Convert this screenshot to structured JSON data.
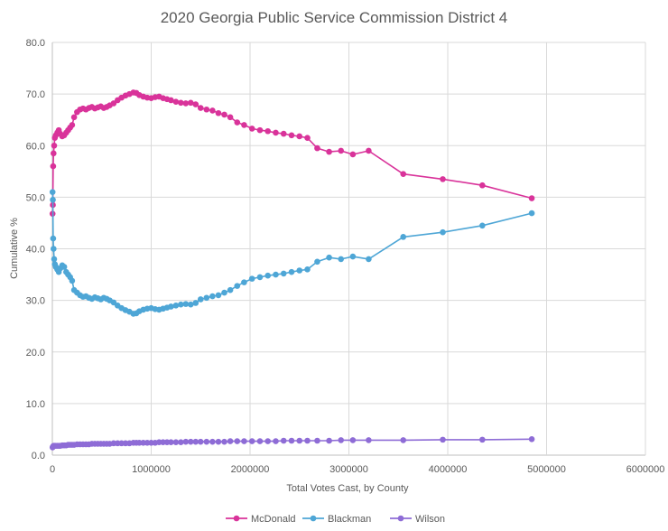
{
  "chart_data": {
    "type": "scatter",
    "title": "2020 Georgia Public Service Commission District 4",
    "xlabel": "Total Votes Cast, by County",
    "ylabel": "Cumulative %",
    "xlim": [
      0,
      6000000
    ],
    "ylim": [
      0,
      80
    ],
    "x_ticks": [
      "0",
      "1000000",
      "2000000",
      "3000000",
      "4000000",
      "5000000",
      "6000000"
    ],
    "y_ticks": [
      "0.0",
      "10.0",
      "20.0",
      "30.0",
      "40.0",
      "50.0",
      "60.0",
      "70.0",
      "80.0"
    ],
    "grid": true,
    "legend_position": "bottom",
    "series": [
      {
        "name": "McDonald",
        "color": "#d9339a",
        "x": [
          2000,
          5000,
          8000,
          12000,
          18000,
          25000,
          35000,
          50000,
          65000,
          80000,
          100000,
          120000,
          140000,
          160000,
          180000,
          200000,
          220000,
          250000,
          280000,
          310000,
          340000,
          370000,
          400000,
          430000,
          460000,
          490000,
          520000,
          550000,
          580000,
          620000,
          660000,
          700000,
          740000,
          780000,
          820000,
          850000,
          880000,
          920000,
          960000,
          1000000,
          1040000,
          1080000,
          1120000,
          1160000,
          1200000,
          1250000,
          1300000,
          1350000,
          1400000,
          1450000,
          1500000,
          1560000,
          1620000,
          1680000,
          1740000,
          1800000,
          1870000,
          1940000,
          2020000,
          2100000,
          2180000,
          2260000,
          2340000,
          2420000,
          2500000,
          2580000,
          2680000,
          2800000,
          2920000,
          3040000,
          3200000,
          3550000,
          3950000,
          4350000,
          4850000
        ],
        "y": [
          46.8,
          48.5,
          56.0,
          58.5,
          60.0,
          61.5,
          62.0,
          62.5,
          63.0,
          62.3,
          61.8,
          62.0,
          62.5,
          63.0,
          63.5,
          64.0,
          65.5,
          66.5,
          67.0,
          67.2,
          67.0,
          67.3,
          67.5,
          67.2,
          67.4,
          67.6,
          67.3,
          67.5,
          67.8,
          68.2,
          68.8,
          69.3,
          69.7,
          70.0,
          70.3,
          70.2,
          69.8,
          69.5,
          69.3,
          69.2,
          69.4,
          69.5,
          69.2,
          69.0,
          68.8,
          68.5,
          68.3,
          68.2,
          68.3,
          68.0,
          67.3,
          67.0,
          66.8,
          66.3,
          66.0,
          65.5,
          64.5,
          64.0,
          63.3,
          63.0,
          62.8,
          62.5,
          62.3,
          62.0,
          61.8,
          61.5,
          59.5,
          58.8,
          59.0,
          58.3,
          59.0,
          54.5,
          53.5,
          52.3,
          49.8
        ]
      },
      {
        "name": "Blackman",
        "color": "#4ea6d6",
        "x": [
          2000,
          5000,
          8000,
          12000,
          18000,
          25000,
          35000,
          50000,
          65000,
          80000,
          100000,
          120000,
          140000,
          160000,
          180000,
          200000,
          220000,
          250000,
          280000,
          310000,
          340000,
          370000,
          400000,
          430000,
          460000,
          490000,
          520000,
          550000,
          580000,
          620000,
          660000,
          700000,
          740000,
          780000,
          820000,
          850000,
          880000,
          920000,
          960000,
          1000000,
          1040000,
          1080000,
          1120000,
          1160000,
          1200000,
          1250000,
          1300000,
          1350000,
          1400000,
          1450000,
          1500000,
          1560000,
          1620000,
          1680000,
          1740000,
          1800000,
          1870000,
          1940000,
          2020000,
          2100000,
          2180000,
          2260000,
          2340000,
          2420000,
          2500000,
          2580000,
          2680000,
          2800000,
          2920000,
          3040000,
          3200000,
          3550000,
          3950000,
          4350000,
          4850000
        ],
        "y": [
          51.0,
          49.5,
          42.0,
          40.0,
          38.0,
          37.0,
          36.5,
          36.0,
          35.5,
          36.2,
          36.8,
          36.5,
          35.5,
          35.0,
          34.5,
          33.8,
          32.0,
          31.5,
          31.0,
          30.7,
          30.8,
          30.5,
          30.3,
          30.6,
          30.4,
          30.2,
          30.5,
          30.3,
          30.0,
          29.6,
          29.0,
          28.5,
          28.1,
          27.8,
          27.4,
          27.5,
          27.9,
          28.2,
          28.4,
          28.5,
          28.3,
          28.2,
          28.4,
          28.6,
          28.8,
          29.0,
          29.2,
          29.3,
          29.2,
          29.5,
          30.2,
          30.5,
          30.8,
          31.0,
          31.5,
          32.0,
          32.8,
          33.5,
          34.2,
          34.5,
          34.8,
          35.0,
          35.2,
          35.5,
          35.8,
          36.0,
          37.5,
          38.3,
          38.0,
          38.5,
          38.0,
          42.3,
          43.2,
          44.5,
          46.9
        ]
      },
      {
        "name": "Wilson",
        "color": "#8e6cd6",
        "x": [
          2000,
          5000,
          8000,
          12000,
          18000,
          25000,
          35000,
          50000,
          65000,
          80000,
          100000,
          120000,
          140000,
          160000,
          180000,
          200000,
          220000,
          250000,
          280000,
          310000,
          340000,
          370000,
          400000,
          430000,
          460000,
          490000,
          520000,
          550000,
          580000,
          620000,
          660000,
          700000,
          740000,
          780000,
          820000,
          850000,
          880000,
          920000,
          960000,
          1000000,
          1040000,
          1080000,
          1120000,
          1160000,
          1200000,
          1250000,
          1300000,
          1350000,
          1400000,
          1450000,
          1500000,
          1560000,
          1620000,
          1680000,
          1740000,
          1800000,
          1870000,
          1940000,
          2020000,
          2100000,
          2180000,
          2260000,
          2340000,
          2420000,
          2500000,
          2580000,
          2680000,
          2800000,
          2920000,
          3040000,
          3200000,
          3550000,
          3950000,
          4350000,
          4850000
        ],
        "y": [
          1.5,
          1.6,
          1.7,
          1.8,
          1.8,
          1.8,
          1.8,
          1.8,
          1.8,
          1.8,
          1.9,
          1.9,
          1.9,
          2.0,
          2.0,
          2.0,
          2.0,
          2.1,
          2.1,
          2.1,
          2.1,
          2.1,
          2.2,
          2.2,
          2.2,
          2.2,
          2.2,
          2.2,
          2.2,
          2.3,
          2.3,
          2.3,
          2.3,
          2.3,
          2.4,
          2.4,
          2.4,
          2.4,
          2.4,
          2.4,
          2.4,
          2.5,
          2.5,
          2.5,
          2.5,
          2.5,
          2.5,
          2.6,
          2.6,
          2.6,
          2.6,
          2.6,
          2.6,
          2.6,
          2.6,
          2.7,
          2.7,
          2.7,
          2.7,
          2.7,
          2.7,
          2.7,
          2.8,
          2.8,
          2.8,
          2.8,
          2.8,
          2.8,
          2.9,
          2.9,
          2.9,
          2.9,
          3.0,
          3.0,
          3.1
        ]
      }
    ]
  }
}
